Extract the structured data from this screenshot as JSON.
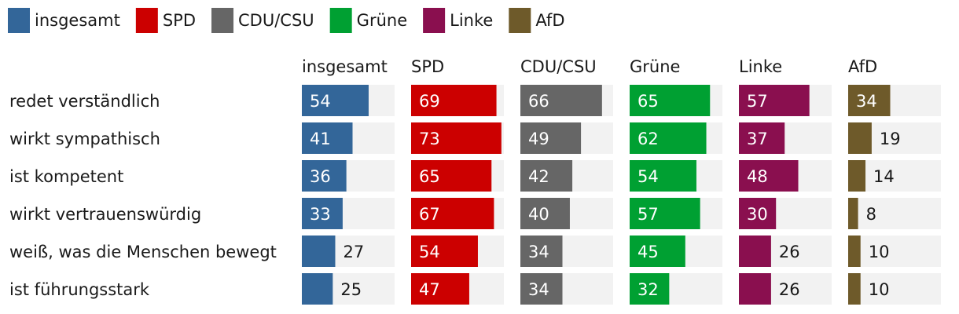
{
  "chart_data": {
    "type": "bar",
    "orientation": "horizontal",
    "layout": "small-multiples",
    "title": "",
    "xlabel": "",
    "ylabel": "",
    "xlim": [
      0,
      75
    ],
    "grid": false,
    "legend_position": "top-left",
    "categories": [
      "redet verständlich",
      "wirkt sympathisch",
      "ist kompetent",
      "wirkt vertrauenswürdig",
      "weiß, was die Menschen bewegt",
      "ist führungsstark"
    ],
    "series": [
      {
        "name": "insgesamt",
        "color": "#336699",
        "values": [
          54,
          41,
          36,
          33,
          27,
          25
        ]
      },
      {
        "name": "SPD",
        "color": "#cc0000",
        "values": [
          69,
          73,
          65,
          67,
          54,
          47
        ]
      },
      {
        "name": "CDU/CSU",
        "color": "#666666",
        "values": [
          66,
          49,
          42,
          40,
          34,
          34
        ]
      },
      {
        "name": "Grüne",
        "color": "#00a032",
        "values": [
          65,
          62,
          54,
          57,
          45,
          32
        ]
      },
      {
        "name": "Linke",
        "color": "#8a0f4f",
        "values": [
          57,
          37,
          48,
          30,
          26,
          26
        ]
      },
      {
        "name": "AfD",
        "color": "#6e5a2a",
        "values": [
          34,
          19,
          14,
          8,
          10,
          10
        ]
      }
    ]
  }
}
